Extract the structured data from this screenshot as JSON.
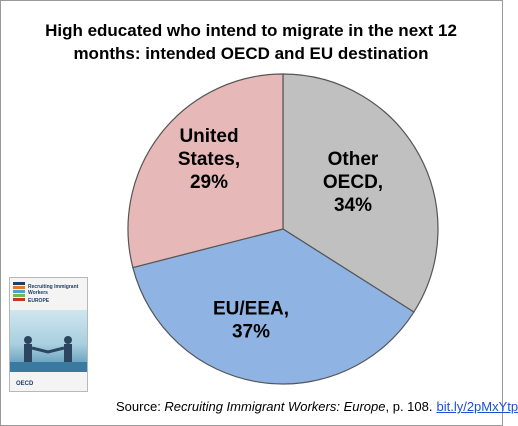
{
  "chart_data": {
    "type": "pie",
    "title": "High educated who intend to migrate in the next 12 months: intended OECD and EU destination",
    "slices": [
      {
        "label_lines": [
          "Other",
          "OECD,",
          "34%"
        ],
        "value": 34,
        "color": "#c0c0c0"
      },
      {
        "label_lines": [
          "EU/EEA,",
          "37%"
        ],
        "value": 37,
        "color": "#8fb4e3"
      },
      {
        "label_lines": [
          "United",
          "States,",
          "29%"
        ],
        "value": 29,
        "color": "#e6b9b8"
      }
    ],
    "start": "12 o'clock",
    "direction": "clockwise",
    "legend": "none"
  },
  "cover": {
    "title": "Recruiting Immigrant Workers",
    "subtitle": "EUROPE",
    "logo": "OECD",
    "stripe_colors": [
      "#1f3d66",
      "#e07b1f",
      "#4aa3d8",
      "#7ab648",
      "#c8322f"
    ]
  },
  "source": {
    "prefix": "Source: ",
    "work": "Recruiting Immigrant Workers: Europe",
    "suffix": ", p. 108.",
    "link": "bit.ly/2pMxYtp"
  }
}
